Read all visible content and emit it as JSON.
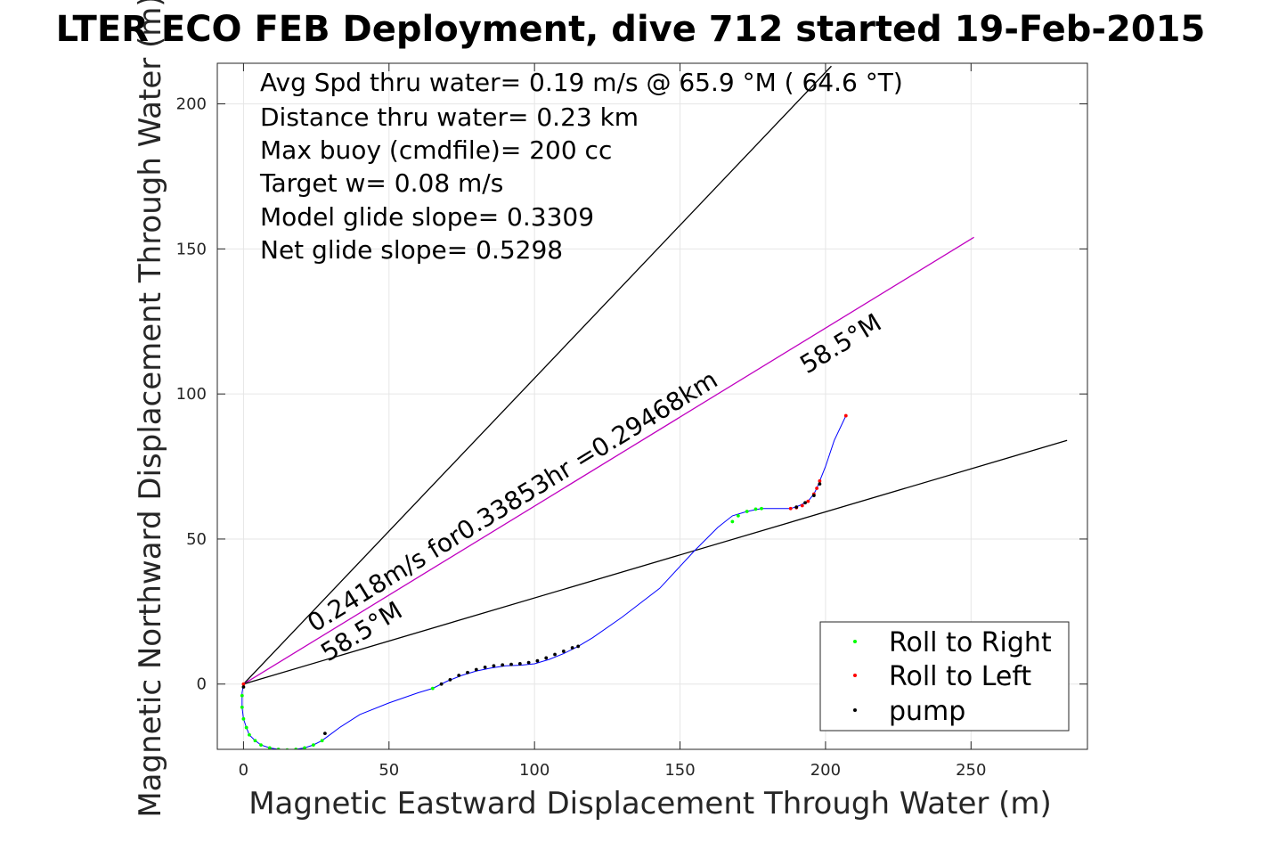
{
  "chart_data": {
    "type": "line",
    "title": "LTER ECO FEB Deployment, dive 712 started 19-Feb-2015",
    "xlabel": "Magnetic Eastward Displacement Through Water (m)",
    "ylabel": "Magnetic Northward Displacement Through Water (m)",
    "xlim": [
      -9,
      290
    ],
    "ylim": [
      -22.5,
      214
    ],
    "xticks": [
      0,
      50,
      100,
      150,
      200,
      250
    ],
    "yticks": [
      0,
      50,
      100,
      150,
      200
    ],
    "xtick_labels": [
      "0",
      "50",
      "100",
      "150",
      "200",
      "250"
    ],
    "ytick_labels": [
      "0",
      "50",
      "100",
      "150",
      "200"
    ],
    "grid": true,
    "info_lines": [
      "Avg Spd thru water=  0.19 m/s @  65.9 °M ( 64.6 °T)",
      "Distance thru water=  0.23 km",
      "Max buoy (cmdfile)= 200 cc",
      "Target w= 0.08 m/s",
      "Model glide slope= 0.3309",
      "Net glide slope= 0.5298"
    ],
    "annotations": {
      "speed_label": "0.2418m/s for0.33853hr =0.29468km",
      "heading_label_low": "58.5°M",
      "heading_label_high": "58.5°M"
    },
    "reference_lines": [
      {
        "name": "upper",
        "x": [
          0,
          202
        ],
        "y": [
          0,
          213
        ],
        "color": "#000000"
      },
      {
        "name": "heading",
        "x": [
          0,
          251
        ],
        "y": [
          0,
          154
        ],
        "color": "#c000c0"
      },
      {
        "name": "lower",
        "x": [
          0,
          283
        ],
        "y": [
          0,
          84
        ],
        "color": "#000000"
      }
    ],
    "track": {
      "color": "#0000ff",
      "x": [
        0,
        -0.5,
        -0.5,
        0,
        1,
        2,
        4,
        6,
        9,
        12,
        15,
        18,
        21,
        24,
        27,
        29,
        33,
        40,
        50,
        60,
        65,
        70,
        75,
        80,
        85,
        90,
        95,
        100,
        105,
        110,
        115,
        120,
        130,
        143,
        155,
        163,
        168,
        173,
        178,
        188,
        191,
        194,
        196,
        197,
        198,
        200,
        203,
        207
      ],
      "y": [
        0,
        -3,
        -8,
        -12,
        -15,
        -17.5,
        -19.5,
        -21,
        -22,
        -22.5,
        -22.7,
        -22.5,
        -22,
        -21,
        -19.5,
        -18,
        -15,
        -10.5,
        -6.5,
        -3,
        -1.5,
        1,
        3,
        4.5,
        5.5,
        6.3,
        6.5,
        7,
        8.5,
        10.5,
        13,
        16,
        23,
        33,
        46,
        54,
        58,
        59.5,
        60.5,
        60.5,
        61.5,
        63,
        65.5,
        67.5,
        70,
        75,
        84,
        92.5
      ]
    },
    "series": [
      {
        "name": "Roll to Right",
        "color": "#00ff00",
        "x": [
          -0.5,
          -0.5,
          0,
          1,
          2,
          4,
          6,
          9,
          12,
          15,
          18,
          21,
          24,
          27,
          65,
          168,
          170,
          173,
          176,
          178
        ],
        "y": [
          -4,
          -8,
          -12,
          -15,
          -17.5,
          -19.5,
          -21,
          -22,
          -22.5,
          -22.7,
          -22.5,
          -22,
          -21,
          -19.5,
          -1.5,
          56,
          58,
          59.5,
          60.3,
          60.5
        ]
      },
      {
        "name": "Roll to Left",
        "color": "#ff0000",
        "x": [
          0,
          188,
          190,
          192,
          194,
          196,
          197,
          198,
          207
        ],
        "y": [
          0,
          60.5,
          60.8,
          61.5,
          63,
          65.5,
          67.5,
          70,
          92.5
        ]
      },
      {
        "name": "pump",
        "color": "#000000",
        "x": [
          68,
          71,
          74,
          77,
          80,
          83,
          86,
          89,
          92,
          95,
          98,
          101,
          104,
          107,
          110,
          113,
          115,
          190,
          193,
          196,
          198,
          0,
          28
        ],
        "y": [
          0,
          1.5,
          3,
          4,
          5,
          5.8,
          6.3,
          6.6,
          6.8,
          7,
          7.4,
          8,
          9,
          10.2,
          11.3,
          12.5,
          13,
          61,
          62.5,
          65,
          69,
          -1,
          -17
        ]
      }
    ],
    "legend": {
      "position": "bottom-right",
      "entries": [
        "Roll to Right",
        "Roll to Left",
        "pump"
      ]
    }
  }
}
